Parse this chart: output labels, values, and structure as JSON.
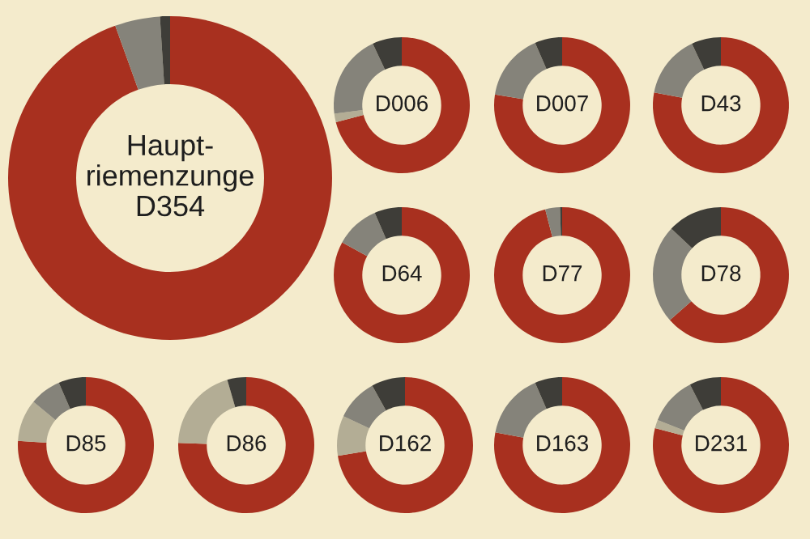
{
  "chart_data": [
    {
      "type": "donut",
      "title": "Haupt-\nriemenzunge\nD354",
      "categories": [
        null,
        null,
        null,
        null
      ],
      "values": [
        94.5,
        0,
        4.5,
        1
      ],
      "colors": [
        "#a8301f",
        "#b3ad95",
        "#85837a",
        "#3e3d38"
      ]
    },
    {
      "type": "donut",
      "title": "D006",
      "categories": [
        null,
        null,
        null,
        null
      ],
      "values": [
        71,
        2,
        20,
        7
      ],
      "colors": [
        "#a8301f",
        "#b3ad95",
        "#85837a",
        "#3e3d38"
      ]
    },
    {
      "type": "donut",
      "title": "D007",
      "categories": [
        null,
        null,
        null,
        null
      ],
      "values": [
        77.5,
        0,
        16,
        6.5
      ],
      "colors": [
        "#a8301f",
        "#b3ad95",
        "#85837a",
        "#3e3d38"
      ]
    },
    {
      "type": "donut",
      "title": "D43",
      "categories": [
        null,
        null,
        null,
        null
      ],
      "values": [
        78,
        0,
        15,
        7
      ],
      "colors": [
        "#a8301f",
        "#b3ad95",
        "#85837a",
        "#3e3d38"
      ]
    },
    {
      "type": "donut",
      "title": "D64",
      "categories": [
        null,
        null,
        null,
        null
      ],
      "values": [
        83,
        0,
        10.5,
        6.5
      ],
      "colors": [
        "#a8301f",
        "#b3ad95",
        "#85837a",
        "#3e3d38"
      ]
    },
    {
      "type": "donut",
      "title": "D77",
      "categories": [
        null,
        null,
        null,
        null
      ],
      "values": [
        96,
        0,
        3.5,
        0.5
      ],
      "colors": [
        "#a8301f",
        "#b3ad95",
        "#85837a",
        "#3e3d38"
      ]
    },
    {
      "type": "donut",
      "title": "D78",
      "categories": [
        null,
        null,
        null,
        null
      ],
      "values": [
        63.5,
        0,
        23.5,
        13
      ],
      "colors": [
        "#a8301f",
        "#b3ad95",
        "#85837a",
        "#3e3d38"
      ]
    },
    {
      "type": "donut",
      "title": "D85",
      "categories": [
        null,
        null,
        null,
        null
      ],
      "values": [
        76,
        10,
        7.5,
        6.5
      ],
      "colors": [
        "#a8301f",
        "#b3ad95",
        "#85837a",
        "#3e3d38"
      ]
    },
    {
      "type": "donut",
      "title": "D86",
      "categories": [
        null,
        null,
        null,
        null
      ],
      "values": [
        75.5,
        20,
        0,
        4.5
      ],
      "colors": [
        "#a8301f",
        "#b3ad95",
        "#85837a",
        "#3e3d38"
      ]
    },
    {
      "type": "donut",
      "title": "D162",
      "categories": [
        null,
        null,
        null,
        null
      ],
      "values": [
        72.5,
        9.5,
        10,
        8
      ],
      "colors": [
        "#a8301f",
        "#b3ad95",
        "#85837a",
        "#3e3d38"
      ]
    },
    {
      "type": "donut",
      "title": "D163",
      "categories": [
        null,
        null,
        null,
        null
      ],
      "values": [
        78,
        0,
        15.5,
        6.5
      ],
      "colors": [
        "#a8301f",
        "#b3ad95",
        "#85837a",
        "#3e3d38"
      ]
    },
    {
      "type": "donut",
      "title": "D231",
      "categories": [
        null,
        null,
        null,
        null
      ],
      "values": [
        79,
        2,
        11.5,
        7.5
      ],
      "colors": [
        "#a8301f",
        "#b3ad95",
        "#85837a",
        "#3e3d38"
      ]
    }
  ]
}
